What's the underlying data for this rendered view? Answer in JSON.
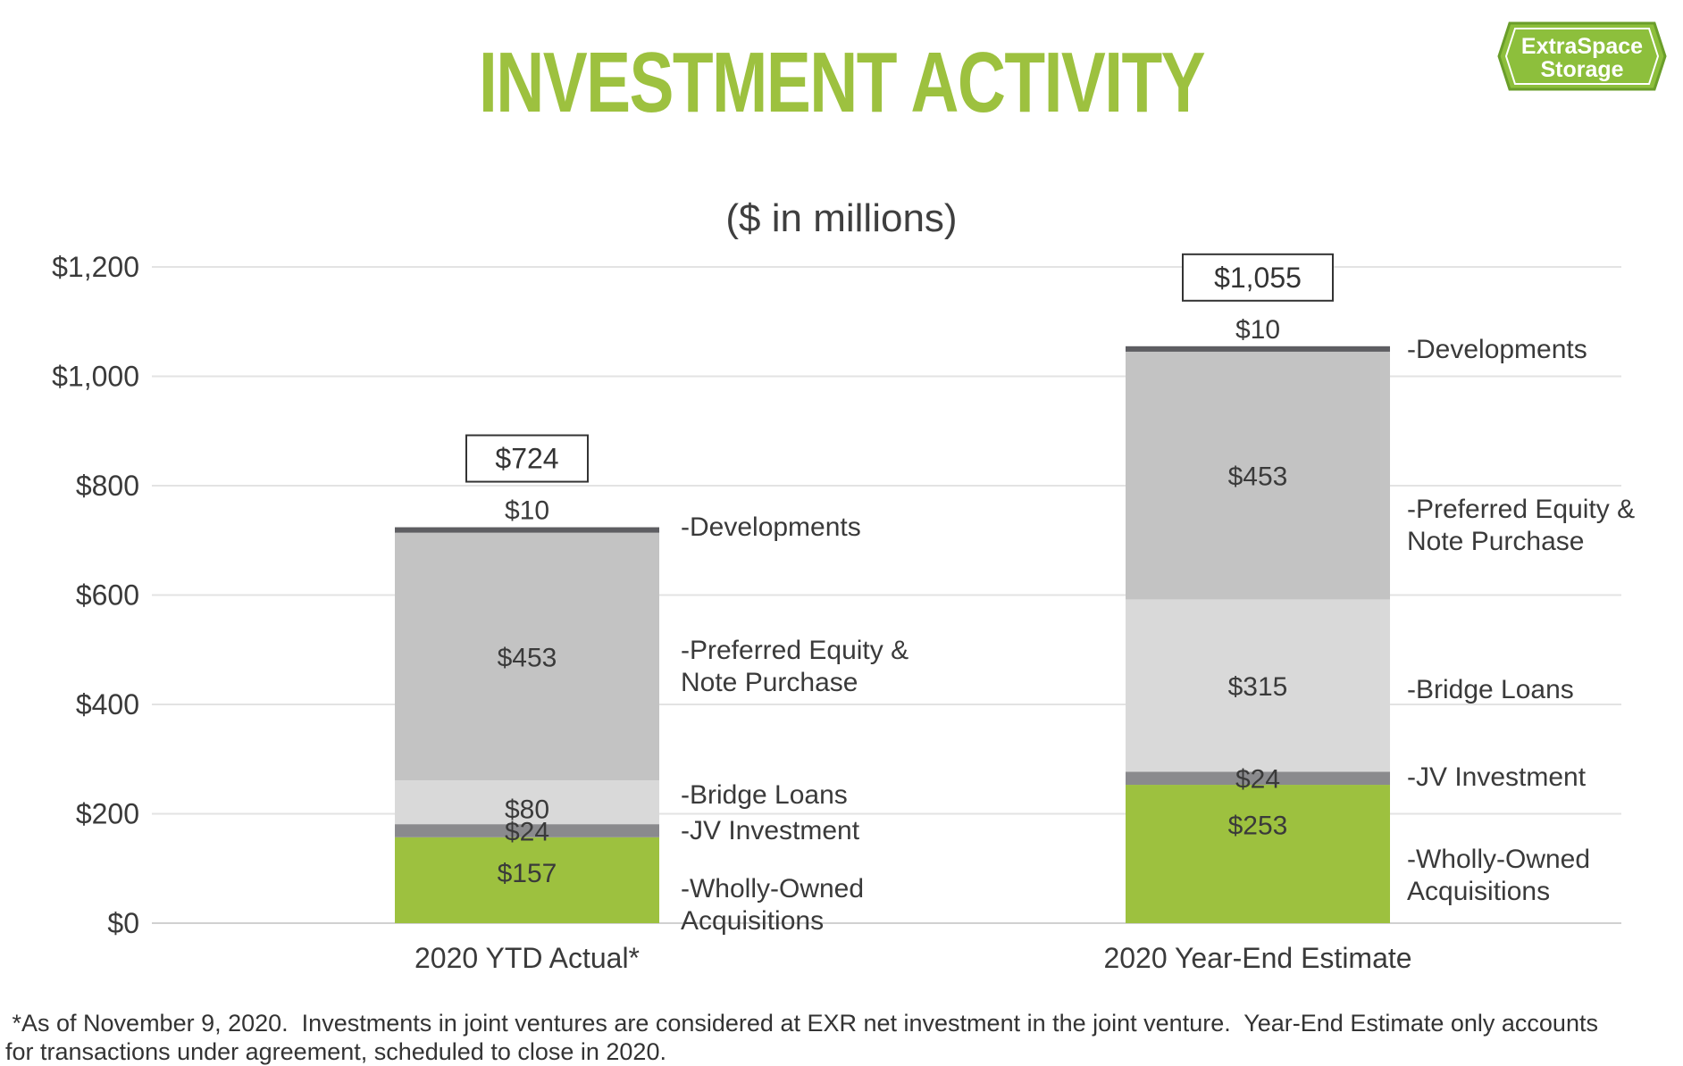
{
  "title": "INVESTMENT ACTIVITY",
  "logo": {
    "line1": "ExtraSpace",
    "line2": "Storage",
    "colors": {
      "fill": "#8dbf3c",
      "border": "#6a9e2a",
      "text": "#ffffff"
    }
  },
  "subtitle": "($ in millions)",
  "footnote": [
    " *As of November 9, 2020.  Investments in joint ventures are considered at EXR net investment in the joint venture.  Year-End Estimate only accounts",
    "for transactions under agreement, scheduled to close in 2020."
  ],
  "chart_data": {
    "type": "bar",
    "stacked": true,
    "categories": [
      "2020 YTD Actual*",
      "2020 Year-End Estimate"
    ],
    "ylim": [
      0,
      1200
    ],
    "yticks": [
      0,
      200,
      400,
      600,
      800,
      1000,
      1200
    ],
    "ytick_labels": [
      "$0",
      "$200",
      "$400",
      "$600",
      "$800",
      "$1,000",
      "$1,200"
    ],
    "grid": true,
    "series": [
      {
        "name": "Wholly-Owned Acquisitions",
        "legend_lines": [
          "-Wholly-Owned",
          " Acquisitions"
        ],
        "values": [
          157,
          253
        ],
        "labels": [
          "$157",
          "$253"
        ],
        "color": "#9dc13f"
      },
      {
        "name": "JV Investment",
        "legend_lines": [
          "-JV Investment"
        ],
        "values": [
          24,
          24
        ],
        "labels": [
          "$24",
          "$24"
        ],
        "color": "#8a8a8d"
      },
      {
        "name": "Bridge Loans",
        "legend_lines": [
          "-Bridge Loans"
        ],
        "values": [
          80,
          315
        ],
        "labels": [
          "$80",
          "$315"
        ],
        "color": "#d9d9d9"
      },
      {
        "name": "Preferred Equity & Note Purchase",
        "legend_lines": [
          "-Preferred Equity &",
          "Note Purchase"
        ],
        "values": [
          453,
          453
        ],
        "labels": [
          "$453",
          "$453"
        ],
        "color": "#c3c3c3"
      },
      {
        "name": "Developments",
        "legend_lines": [
          "-Developments"
        ],
        "values": [
          10,
          10
        ],
        "labels": [
          "$10",
          "$10"
        ],
        "color": "#5e5e62"
      }
    ],
    "totals": [
      724,
      1055
    ],
    "total_labels": [
      "$724",
      "$1,055"
    ]
  }
}
